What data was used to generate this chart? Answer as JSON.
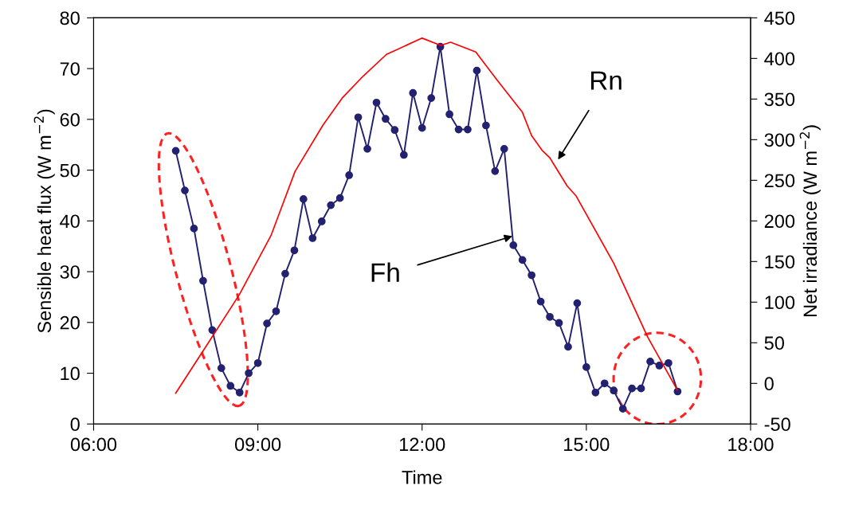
{
  "chart_data": {
    "type": "line",
    "xlabel": "Time",
    "ylabel": "Sensible heat flux (W m$^{−2}$)",
    "y2label": "Net irradiance (W m$^{−2}$)",
    "xlim": [
      6,
      18
    ],
    "xticks": [
      {
        "value": 6,
        "label": "06:00"
      },
      {
        "value": 9,
        "label": "09:00"
      },
      {
        "value": 12,
        "label": "12:00"
      },
      {
        "value": 15,
        "label": "15:00"
      },
      {
        "value": 18,
        "label": "18:00"
      }
    ],
    "ylim": [
      0,
      80
    ],
    "yticks": [
      0,
      10,
      20,
      30,
      40,
      50,
      60,
      70,
      80
    ],
    "y2lim": [
      -50,
      450
    ],
    "y2ticks": [
      -50,
      0,
      50,
      100,
      150,
      200,
      250,
      300,
      350,
      400,
      450
    ],
    "grid": false,
    "legend": false,
    "series": [
      {
        "axis": "y",
        "color": "#232170",
        "marker": "circle",
        "x": [
          7.5,
          7.667,
          7.833,
          8.0,
          8.167,
          8.333,
          8.5,
          8.667,
          8.833,
          9.0,
          9.167,
          9.333,
          9.5,
          9.667,
          9.833,
          10.0,
          10.167,
          10.333,
          10.5,
          10.667,
          10.833,
          11.0,
          11.167,
          11.333,
          11.5,
          11.667,
          11.833,
          12.0,
          12.167,
          12.333,
          12.5,
          12.667,
          12.833,
          13.0,
          13.167,
          13.333,
          13.5,
          13.667,
          13.833,
          14.0,
          14.167,
          14.333,
          14.5,
          14.667,
          14.833,
          15.0,
          15.167,
          15.333,
          15.5,
          15.667,
          15.833,
          16.0,
          16.167,
          16.333,
          16.5,
          16.667
        ],
        "values": [
          53.8,
          46,
          38.5,
          28.2,
          18.5,
          11,
          7.5,
          6.2,
          10,
          12,
          19.8,
          22.2,
          29.6,
          34.2,
          44.3,
          36.6,
          39.9,
          43.1,
          44.5,
          49,
          60.4,
          54.2,
          63.3,
          60.1,
          57.9,
          53,
          65.2,
          58.3,
          64.2,
          74.3,
          61,
          58,
          58,
          69.6,
          58.8,
          49.8,
          54.2,
          35.2,
          32.3,
          29.3,
          24.1,
          21.1,
          19.9,
          15.2,
          23.8,
          11.2,
          6.2,
          8,
          6.6,
          3,
          7,
          7,
          12.3,
          11.5,
          12,
          6.4
        ]
      },
      {
        "axis": "y2",
        "color": "#ff0000",
        "marker": "none",
        "x": [
          7.5,
          8.0,
          8.66,
          9.24,
          9.68,
          10.19,
          10.55,
          10.92,
          11.35,
          12.0,
          12.34,
          12.52,
          12.98,
          13.35,
          13.83,
          14.0,
          14.19,
          14.33,
          14.65,
          14.81,
          15.5,
          16.12,
          16.66
        ],
        "values": [
          -12,
          40,
          109,
          182,
          261,
          318,
          352,
          378,
          405,
          425,
          416,
          420,
          408,
          375,
          334,
          305,
          287,
          278,
          243,
          231,
          148,
          57,
          -8
        ]
      }
    ],
    "annotations": [
      "Rn",
      {
        "text": "Fh",
        "x": 13.65,
        "y": 37
      }
    ]
  }
}
